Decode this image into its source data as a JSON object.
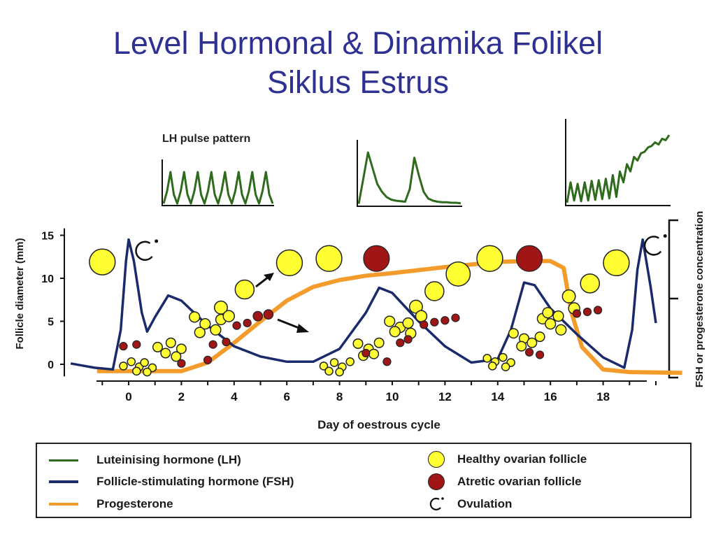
{
  "slide": {
    "title_line1": "Level Hormonal & Dinamika Folikel",
    "title_line2": "Siklus Estrus"
  },
  "colors": {
    "title": "#2e3192",
    "lh": "#2f6b1c",
    "fsh": "#1b2a6b",
    "progesterone": "#f39c2b",
    "healthy_follicle": "#ffff33",
    "atretic_follicle": "#a01616"
  },
  "chart_data": [
    {
      "type": "line",
      "panel": "main",
      "xlabel": "Day of oestrous cycle",
      "ylabel_left": "Follicle diameter (mm)",
      "ylabel_right": "FSH or progesterone  concentration",
      "x_ticks": [
        0,
        2,
        4,
        6,
        8,
        10,
        12,
        14,
        16,
        18
      ],
      "y_ticks": [
        0,
        5,
        10,
        15
      ],
      "xlim": [
        -2,
        21
      ],
      "ylim": [
        -1,
        16
      ],
      "series": [
        {
          "name": "Follicle-stimulating hormone (FSH)",
          "color": "#1b2a6b",
          "points": [
            [
              -2.2,
              0.1
            ],
            [
              -1.3,
              -0.4
            ],
            [
              -0.6,
              -0.6
            ],
            [
              -0.3,
              4
            ],
            [
              -0.1,
              12
            ],
            [
              0.0,
              14.5
            ],
            [
              0.2,
              12
            ],
            [
              0.5,
              6
            ],
            [
              0.7,
              3.8
            ],
            [
              1.0,
              5.5
            ],
            [
              1.5,
              8
            ],
            [
              2.0,
              7.4
            ],
            [
              3.0,
              4.5
            ],
            [
              4.0,
              2.1
            ],
            [
              5.0,
              0.9
            ],
            [
              6.0,
              0.3
            ],
            [
              7.0,
              0.3
            ],
            [
              8.0,
              1.8
            ],
            [
              9.0,
              6
            ],
            [
              9.5,
              8.9
            ],
            [
              10.0,
              8.3
            ],
            [
              11.0,
              5
            ],
            [
              12.0,
              2.1
            ],
            [
              13.0,
              0.2
            ],
            [
              14.0,
              0.6
            ],
            [
              14.5,
              4
            ],
            [
              15.0,
              9.5
            ],
            [
              15.4,
              9.2
            ],
            [
              16.0,
              6.5
            ],
            [
              17.0,
              3.5
            ],
            [
              18.0,
              0.8
            ],
            [
              18.8,
              -0.4
            ],
            [
              19.1,
              4
            ],
            [
              19.3,
              11
            ],
            [
              19.5,
              14.5
            ],
            [
              19.8,
              9
            ],
            [
              20.0,
              4.8
            ]
          ]
        },
        {
          "name": "Progesterone",
          "color": "#f39c2b",
          "points": [
            [
              -1.2,
              -0.8
            ],
            [
              2.0,
              -0.8
            ],
            [
              3.0,
              0.2
            ],
            [
              4.0,
              2.5
            ],
            [
              5.0,
              5
            ],
            [
              6.0,
              7.4
            ],
            [
              7.0,
              9
            ],
            [
              8.0,
              9.8
            ],
            [
              9.0,
              10.3
            ],
            [
              10.0,
              10.6
            ],
            [
              12.0,
              11.3
            ],
            [
              14.0,
              11.9
            ],
            [
              15.0,
              12
            ],
            [
              16.0,
              12
            ],
            [
              16.5,
              11.2
            ],
            [
              16.8,
              6
            ],
            [
              17.2,
              2
            ],
            [
              18.0,
              -0.6
            ],
            [
              19.0,
              -0.9
            ],
            [
              21.0,
              -1.0
            ]
          ]
        }
      ],
      "healthy_follicles": [
        [
          -1.0,
          11.9,
          1.5
        ],
        [
          4.4,
          8.7,
          1.1
        ],
        [
          6.1,
          11.8,
          1.5
        ],
        [
          7.6,
          12.3,
          1.5
        ],
        [
          11.6,
          8.5,
          1.1
        ],
        [
          12.5,
          10.5,
          1.4
        ],
        [
          13.7,
          12.3,
          1.5
        ],
        [
          17.5,
          9.4,
          1.1
        ],
        [
          18.5,
          11.8,
          1.5
        ],
        [
          -0.2,
          -0.2,
          0.45
        ],
        [
          0.1,
          0.3,
          0.45
        ],
        [
          0.4,
          -0.3,
          0.45
        ],
        [
          0.6,
          0.2,
          0.45
        ],
        [
          0.9,
          -0.4,
          0.45
        ],
        [
          0.3,
          -0.8,
          0.45
        ],
        [
          0.7,
          -0.9,
          0.45
        ],
        [
          1.1,
          2.0,
          0.55
        ],
        [
          1.6,
          2.5,
          0.55
        ],
        [
          2.0,
          1.8,
          0.55
        ],
        [
          1.4,
          1.3,
          0.55
        ],
        [
          1.8,
          0.9,
          0.55
        ],
        [
          2.5,
          5.5,
          0.6
        ],
        [
          2.9,
          4.7,
          0.6
        ],
        [
          3.3,
          4.0,
          0.6
        ],
        [
          2.7,
          3.7,
          0.6
        ],
        [
          3.5,
          5.2,
          0.6
        ],
        [
          3.5,
          6.6,
          0.75
        ],
        [
          3.8,
          5.6,
          0.65
        ],
        [
          7.4,
          -0.2,
          0.45
        ],
        [
          7.8,
          0.2,
          0.45
        ],
        [
          8.1,
          -0.3,
          0.45
        ],
        [
          8.4,
          0.3,
          0.45
        ],
        [
          7.6,
          -0.8,
          0.45
        ],
        [
          8.0,
          -0.9,
          0.45
        ],
        [
          8.7,
          2.4,
          0.55
        ],
        [
          9.1,
          1.8,
          0.55
        ],
        [
          9.5,
          2.5,
          0.55
        ],
        [
          8.9,
          1.0,
          0.55
        ],
        [
          9.3,
          1.2,
          0.55
        ],
        [
          9.9,
          5.0,
          0.6
        ],
        [
          10.3,
          4.3,
          0.6
        ],
        [
          10.7,
          3.6,
          0.6
        ],
        [
          10.1,
          3.8,
          0.6
        ],
        [
          10.6,
          4.8,
          0.6
        ],
        [
          10.9,
          6.7,
          0.75
        ],
        [
          11.1,
          5.6,
          0.65
        ],
        [
          13.6,
          0.7,
          0.45
        ],
        [
          13.9,
          0.3,
          0.45
        ],
        [
          14.2,
          0.8,
          0.45
        ],
        [
          14.5,
          0.2,
          0.45
        ],
        [
          13.8,
          -0.2,
          0.45
        ],
        [
          14.3,
          -0.3,
          0.45
        ],
        [
          14.6,
          3.6,
          0.55
        ],
        [
          15.0,
          3.0,
          0.55
        ],
        [
          15.3,
          2.5,
          0.55
        ],
        [
          14.9,
          2.1,
          0.55
        ],
        [
          15.6,
          3.2,
          0.55
        ],
        [
          15.7,
          5.3,
          0.6
        ],
        [
          16.0,
          4.7,
          0.6
        ],
        [
          16.4,
          4.0,
          0.6
        ],
        [
          15.9,
          6.0,
          0.6
        ],
        [
          16.3,
          5.6,
          0.6
        ],
        [
          16.7,
          7.9,
          0.75
        ],
        [
          16.9,
          6.5,
          0.65
        ]
      ],
      "atretic_follicles": [
        [
          -0.2,
          2.1,
          0.45
        ],
        [
          0.3,
          2.3,
          0.45
        ],
        [
          2.0,
          0.1,
          0.45
        ],
        [
          3.0,
          0.5,
          0.45
        ],
        [
          3.2,
          2.3,
          0.45
        ],
        [
          3.7,
          2.6,
          0.45
        ],
        [
          4.1,
          4.5,
          0.45
        ],
        [
          4.5,
          4.8,
          0.45
        ],
        [
          4.9,
          5.6,
          0.55
        ],
        [
          5.3,
          5.8,
          0.55
        ],
        [
          9.0,
          1.3,
          0.45
        ],
        [
          9.8,
          0.3,
          0.45
        ],
        [
          10.3,
          2.5,
          0.45
        ],
        [
          10.6,
          2.9,
          0.45
        ],
        [
          11.2,
          4.6,
          0.45
        ],
        [
          11.6,
          4.9,
          0.45
        ],
        [
          12.0,
          5.1,
          0.45
        ],
        [
          12.4,
          5.4,
          0.45
        ],
        [
          9.4,
          12.3,
          1.5
        ],
        [
          15.2,
          1.4,
          0.45
        ],
        [
          15.6,
          1.1,
          0.45
        ],
        [
          17.0,
          5.9,
          0.45
        ],
        [
          17.4,
          6.1,
          0.45
        ],
        [
          17.8,
          6.3,
          0.45
        ],
        [
          15.2,
          12.3,
          1.5
        ]
      ],
      "ovulation_marks": [
        [
          0.6,
          13.1
        ],
        [
          19.9,
          13.7
        ]
      ]
    },
    {
      "type": "line",
      "panel": "LH pulse pattern (early)",
      "title": "LH pulse pattern",
      "color": "#2f6b1c",
      "values": [
        0.02,
        0.4,
        1.0,
        0.3,
        0.02,
        0.4,
        1.0,
        0.3,
        0.02,
        0.4,
        1.0,
        0.3,
        0.02,
        0.4,
        1.0,
        0.3,
        0.02,
        0.4,
        1.0,
        0.3,
        0.02,
        0.4,
        1.0,
        0.3,
        0.02,
        0.4,
        1.0,
        0.3,
        0.02,
        0.4,
        1.0,
        0.3,
        0.02
      ]
    },
    {
      "type": "line",
      "panel": "LH pulse pattern (mid)",
      "color": "#2f6b1c",
      "values": [
        0.02,
        0.5,
        1.0,
        0.7,
        0.4,
        0.25,
        0.15,
        0.1,
        0.08,
        0.07,
        0.06,
        0.3,
        0.9,
        0.55,
        0.25,
        0.12,
        0.08,
        0.06,
        0.05,
        0.05,
        0.04,
        0.04,
        0.03
      ]
    },
    {
      "type": "line",
      "panel": "LH pulse pattern (late)",
      "color": "#2f6b1c",
      "values": [
        0.02,
        0.3,
        0.05,
        0.28,
        0.04,
        0.3,
        0.05,
        0.32,
        0.06,
        0.33,
        0.07,
        0.35,
        0.08,
        0.4,
        0.1,
        0.45,
        0.3,
        0.55,
        0.45,
        0.65,
        0.6,
        0.7,
        0.72,
        0.78,
        0.8,
        0.85,
        0.82,
        0.9,
        0.88,
        0.95
      ]
    }
  ],
  "legend": {
    "lh": "Luteinising  hormone (LH)",
    "fsh": "Follicle-stimulating hormone (FSH)",
    "progesterone": "Progesterone",
    "healthy": "Healthy ovarian follicle",
    "atretic": "Atretic ovarian follicle",
    "ovulation": "Ovulation"
  }
}
